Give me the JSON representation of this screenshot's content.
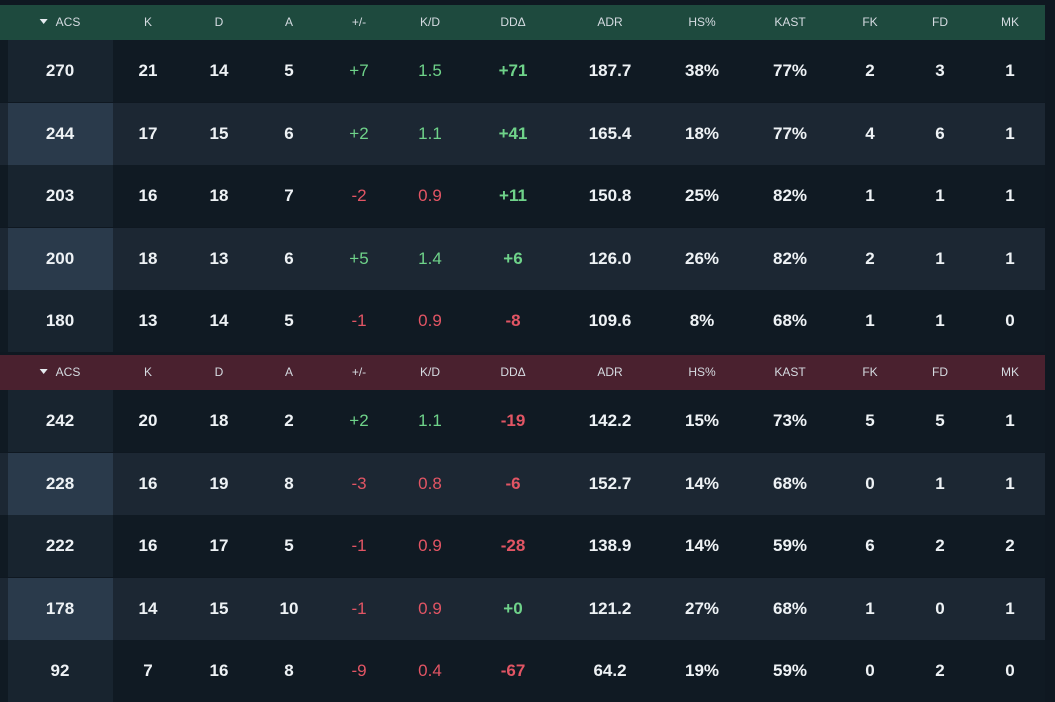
{
  "columns": [
    "ACS",
    "K",
    "D",
    "A",
    "+/-",
    "K/D",
    "DDΔ",
    "ADR",
    "HS%",
    "KAST",
    "FK",
    "FD",
    "MK"
  ],
  "colors": {
    "team1_header": "#1e4a3e",
    "team2_header": "#4a212f",
    "positive": "#6fd38a",
    "negative": "#e25564"
  },
  "teams": [
    {
      "rows": [
        {
          "acs": "270",
          "k": "21",
          "d": "14",
          "a": "5",
          "pm": "+7",
          "kd": "1.5",
          "dd": "+71",
          "adr": "187.7",
          "hs": "38%",
          "kast": "77%",
          "fk": "2",
          "fd": "3",
          "mk": "1"
        },
        {
          "acs": "244",
          "k": "17",
          "d": "15",
          "a": "6",
          "pm": "+2",
          "kd": "1.1",
          "dd": "+41",
          "adr": "165.4",
          "hs": "18%",
          "kast": "77%",
          "fk": "4",
          "fd": "6",
          "mk": "1"
        },
        {
          "acs": "203",
          "k": "16",
          "d": "18",
          "a": "7",
          "pm": "-2",
          "kd": "0.9",
          "dd": "+11",
          "adr": "150.8",
          "hs": "25%",
          "kast": "82%",
          "fk": "1",
          "fd": "1",
          "mk": "1"
        },
        {
          "acs": "200",
          "k": "18",
          "d": "13",
          "a": "6",
          "pm": "+5",
          "kd": "1.4",
          "dd": "+6",
          "adr": "126.0",
          "hs": "26%",
          "kast": "82%",
          "fk": "2",
          "fd": "1",
          "mk": "1"
        },
        {
          "acs": "180",
          "k": "13",
          "d": "14",
          "a": "5",
          "pm": "-1",
          "kd": "0.9",
          "dd": "-8",
          "adr": "109.6",
          "hs": "8%",
          "kast": "68%",
          "fk": "1",
          "fd": "1",
          "mk": "0"
        }
      ]
    },
    {
      "rows": [
        {
          "acs": "242",
          "k": "20",
          "d": "18",
          "a": "2",
          "pm": "+2",
          "kd": "1.1",
          "dd": "-19",
          "adr": "142.2",
          "hs": "15%",
          "kast": "73%",
          "fk": "5",
          "fd": "5",
          "mk": "1"
        },
        {
          "acs": "228",
          "k": "16",
          "d": "19",
          "a": "8",
          "pm": "-3",
          "kd": "0.8",
          "dd": "-6",
          "adr": "152.7",
          "hs": "14%",
          "kast": "68%",
          "fk": "0",
          "fd": "1",
          "mk": "1"
        },
        {
          "acs": "222",
          "k": "16",
          "d": "17",
          "a": "5",
          "pm": "-1",
          "kd": "0.9",
          "dd": "-28",
          "adr": "138.9",
          "hs": "14%",
          "kast": "59%",
          "fk": "6",
          "fd": "2",
          "mk": "2"
        },
        {
          "acs": "178",
          "k": "14",
          "d": "15",
          "a": "10",
          "pm": "-1",
          "kd": "0.9",
          "dd": "+0",
          "adr": "121.2",
          "hs": "27%",
          "kast": "68%",
          "fk": "1",
          "fd": "0",
          "mk": "1"
        },
        {
          "acs": "92",
          "k": "7",
          "d": "16",
          "a": "8",
          "pm": "-9",
          "kd": "0.4",
          "dd": "-67",
          "adr": "64.2",
          "hs": "19%",
          "kast": "59%",
          "fk": "0",
          "fd": "2",
          "mk": "0"
        }
      ]
    }
  ]
}
